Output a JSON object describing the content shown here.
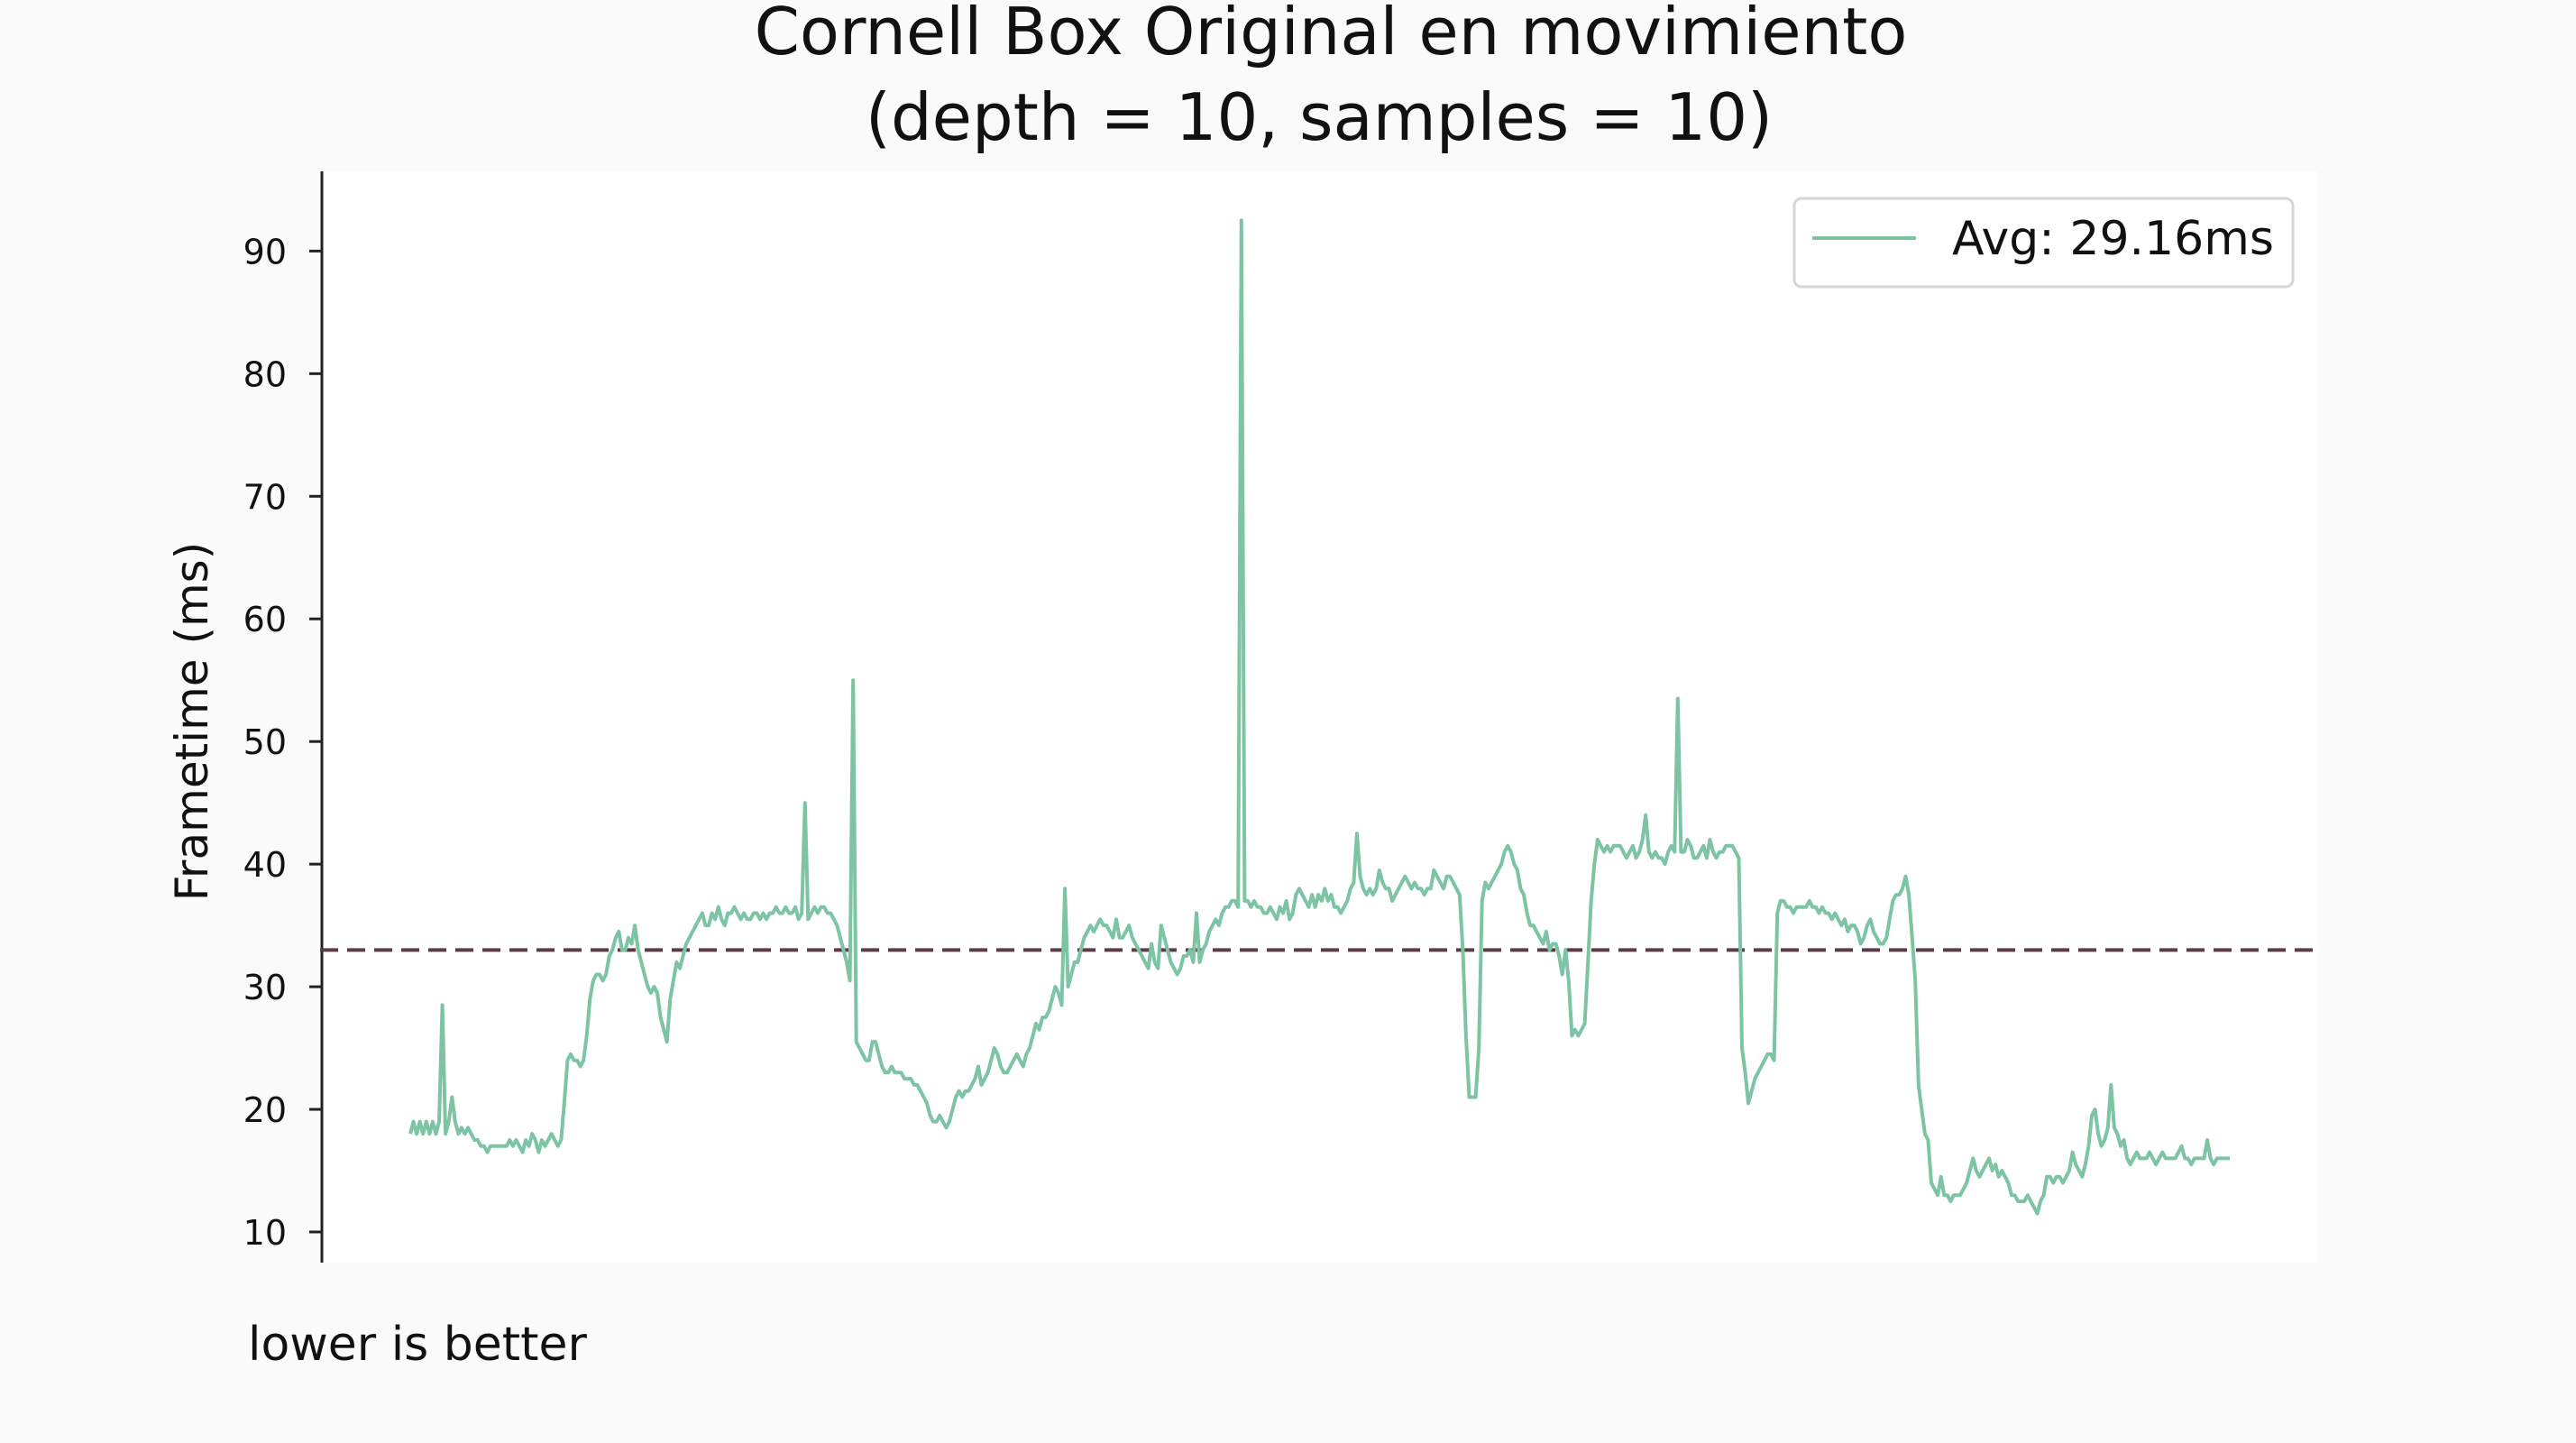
{
  "chart_data": {
    "type": "line",
    "title": "Cornell Box Original en movimiento",
    "subtitle": "(depth = 10, samples = 10)",
    "ylabel": "Frametime (ms)",
    "xlabel": "",
    "footnote": "lower is better",
    "ylim": [
      7.5,
      96.5
    ],
    "yticks": [
      10,
      20,
      30,
      40,
      50,
      60,
      70,
      80,
      90
    ],
    "grid": false,
    "legend_position": "top-right",
    "reference_line": {
      "value": 33,
      "style": "dashed",
      "color": "#5a3b48"
    },
    "series": [
      {
        "name": "Avg: 29.16ms",
        "color": "#7cc4a4",
        "values": [
          18,
          19,
          18,
          19,
          18,
          19,
          18,
          19,
          18,
          19,
          28.5,
          18,
          19,
          21,
          19,
          18,
          18.5,
          18,
          18.5,
          18,
          17.5,
          17.5,
          17,
          17,
          16.5,
          17,
          17,
          17,
          17,
          17,
          17,
          17.5,
          17,
          17.5,
          17,
          16.5,
          17.5,
          17,
          18,
          17.5,
          16.5,
          17.5,
          17,
          17.5,
          18,
          17.5,
          17,
          17.5,
          20.5,
          24,
          24.5,
          24,
          24,
          23.5,
          24,
          26,
          29,
          30.5,
          31,
          31,
          30.5,
          31,
          32.5,
          33,
          34,
          34.5,
          33,
          33,
          34,
          33.5,
          35,
          33,
          32,
          31,
          30,
          29.5,
          30,
          29.5,
          27.5,
          26.5,
          25.5,
          29,
          30.5,
          32,
          31.5,
          32.5,
          33.5,
          34,
          34.5,
          35,
          35.5,
          36,
          35,
          35,
          36,
          35.5,
          36.5,
          35.5,
          35,
          36,
          36,
          36.5,
          36,
          35.5,
          36,
          35.5,
          35.5,
          36,
          36,
          35.5,
          36,
          35.5,
          36,
          36,
          36.5,
          36,
          36,
          36.5,
          36,
          36,
          36.5,
          35.5,
          36,
          45,
          35.5,
          36,
          36.5,
          36,
          36.5,
          36.5,
          36,
          36,
          35.5,
          35,
          34,
          33,
          32,
          30.5,
          55,
          25.5,
          25,
          24.5,
          24,
          24,
          25.5,
          25.5,
          24.5,
          23.5,
          23,
          23,
          23.5,
          23,
          23,
          23,
          22.5,
          22.5,
          22.5,
          22,
          22,
          21.5,
          21,
          20.5,
          19.5,
          19,
          19,
          19.5,
          19,
          18.5,
          19,
          20,
          21,
          21.5,
          21,
          21.5,
          21.5,
          22,
          22.5,
          23.5,
          22,
          22.5,
          23,
          24,
          25,
          24.5,
          23.5,
          23,
          23,
          23.5,
          24,
          24.5,
          24,
          23.5,
          24.5,
          25,
          26,
          27,
          26.5,
          27.5,
          27.5,
          28,
          29,
          30,
          29.5,
          28.5,
          38,
          30,
          31,
          32,
          32,
          33,
          34,
          34.5,
          35,
          34.5,
          35,
          35.5,
          35,
          35,
          34.5,
          34,
          35.5,
          34,
          34,
          34.5,
          35,
          34,
          33.5,
          33,
          32.5,
          32,
          31.5,
          33.5,
          32,
          31.5,
          35,
          34,
          33,
          32,
          31.5,
          31,
          31.5,
          32.5,
          32.5,
          33,
          32,
          36,
          32,
          33,
          33.5,
          34.5,
          35,
          35.5,
          35,
          36,
          36.5,
          36.5,
          37,
          37,
          36.5,
          92.5,
          37,
          37,
          36.5,
          37,
          36.5,
          36.5,
          36,
          36,
          36.5,
          36,
          35.5,
          36.5,
          36,
          37,
          35.5,
          36,
          37.5,
          38,
          37.5,
          37,
          36.5,
          37.5,
          36.5,
          37.5,
          37,
          38,
          37,
          37.5,
          36.5,
          36.5,
          36,
          36.5,
          37,
          38,
          38.5,
          42.5,
          39,
          38,
          37.5,
          38,
          37.5,
          38,
          39.5,
          38.5,
          38,
          38,
          37,
          37.5,
          38,
          38.5,
          39,
          38.5,
          38,
          38.5,
          38,
          38,
          37.5,
          38,
          38,
          39.5,
          39,
          38.5,
          38,
          39,
          39,
          38.5,
          38,
          37.5,
          33,
          26,
          21,
          21,
          21,
          25,
          37,
          38.5,
          38,
          38.5,
          39,
          39.5,
          40,
          41,
          41.5,
          41,
          40,
          39.5,
          38,
          37.5,
          36,
          35,
          35,
          34.5,
          34,
          33.5,
          34.5,
          33,
          33.5,
          33.5,
          32.5,
          31,
          33,
          30.5,
          26,
          26.5,
          26,
          26.5,
          27,
          32,
          37,
          40,
          42,
          41.5,
          41,
          41.5,
          41,
          41.5,
          41.5,
          41.5,
          41,
          40.5,
          41,
          41.5,
          40.5,
          41,
          42,
          44,
          41,
          40.5,
          41,
          40.5,
          40.5,
          40,
          41,
          41.5,
          41,
          53.5,
          41,
          41,
          42,
          41.5,
          40.5,
          40.5,
          41,
          41.5,
          40.5,
          42,
          41,
          40.5,
          41,
          41,
          41.5,
          41.5,
          41.5,
          41,
          40.5,
          25,
          23,
          20.5,
          21.5,
          22.5,
          23,
          23.5,
          24,
          24.5,
          24.5,
          24,
          36,
          37,
          37,
          36.5,
          36.5,
          36,
          36.5,
          36.5,
          36.5,
          36.5,
          37,
          36.5,
          36.5,
          36,
          36.5,
          36,
          36,
          35.5,
          36,
          35.5,
          35,
          35.5,
          34.5,
          35,
          35,
          34.5,
          33.5,
          34,
          35,
          35.5,
          34.5,
          34,
          33.5,
          33.5,
          34,
          35.5,
          37,
          37.5,
          37.5,
          38,
          39,
          37.5,
          34,
          30.5,
          22,
          20,
          18,
          17.5,
          14,
          13.5,
          13,
          14.5,
          13,
          13,
          12.5,
          13,
          13,
          13,
          13.5,
          14,
          15,
          16,
          15,
          14.5,
          15,
          15.5,
          16,
          15,
          15.5,
          14.5,
          15,
          14.5,
          14,
          13,
          13,
          12.5,
          12.5,
          12.5,
          13,
          12.5,
          12,
          11.5,
          12.5,
          13,
          14.5,
          14.5,
          14,
          14.5,
          14.5,
          14,
          14.5,
          15,
          16.5,
          15.5,
          15,
          14.5,
          15.5,
          17,
          19.5,
          20,
          18,
          17,
          17.5,
          18.5,
          22,
          18.5,
          18,
          17,
          17.5,
          16,
          15.5,
          16,
          16.5,
          16,
          16,
          16,
          16.5,
          16,
          15.5,
          16,
          16.5,
          16,
          16,
          16,
          16,
          16.5,
          17,
          16,
          16,
          15.5,
          16,
          16,
          16,
          16,
          17.5,
          16,
          15.5,
          16,
          16,
          16,
          16,
          16
        ]
      }
    ]
  }
}
